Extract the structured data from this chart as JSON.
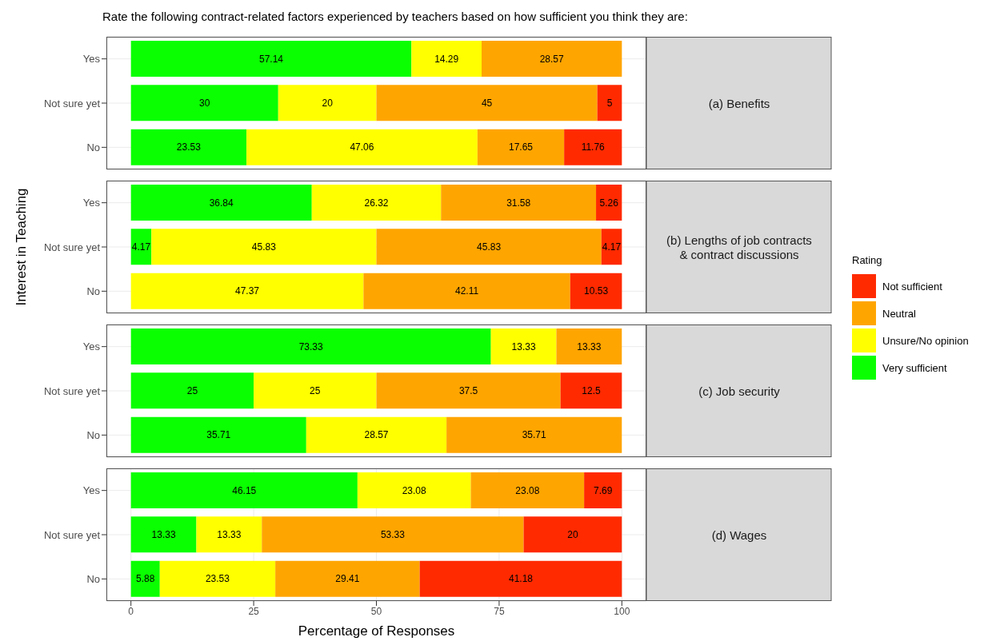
{
  "chart_data": [
    {
      "type": "bar",
      "orientation": "horizontal",
      "stacked": true,
      "title": "Rate the following contract-related factors experienced by teachers based on how sufficient you think they are:",
      "annotations": [
        "(a) Benefits"
      ],
      "legend": "right",
      "legend_title": "Rating",
      "categories": [
        "Yes",
        "Not sure yet",
        "No"
      ],
      "xlim": [
        -5,
        105
      ],
      "xticks": [
        0,
        25,
        50,
        75,
        100
      ],
      "grid": true,
      "data_labels": true,
      "tick_labels": "y",
      "series": [
        {
          "name": "Very sufficient",
          "color": "#0aff00",
          "values": [
            57.14,
            30,
            23.53
          ]
        },
        {
          "name": "Unsure/No opinion",
          "color": "#ffff00",
          "values": [
            14.29,
            20,
            47.06
          ]
        },
        {
          "name": "Neutral",
          "color": "#ffa500",
          "values": [
            28.57,
            45,
            17.65
          ]
        },
        {
          "name": "Not sufficient",
          "color": "#ff2a00",
          "values": [
            null,
            5,
            11.76
          ]
        }
      ]
    },
    {
      "type": "bar",
      "orientation": "horizontal",
      "stacked": true,
      "annotations": [
        "(b) Lengths of job contracts & contract discussions"
      ],
      "ylabel": "Interest in Teaching",
      "categories": [
        "Yes",
        "Not sure yet",
        "No"
      ],
      "xlim": [
        -5,
        105
      ],
      "xticks": [
        0,
        25,
        50,
        75,
        100
      ],
      "grid": true,
      "data_labels": true,
      "tick_labels": "y",
      "series": [
        {
          "color": "#0aff00",
          "values": [
            36.84,
            4.17,
            null
          ]
        },
        {
          "color": "#ffff00",
          "values": [
            26.32,
            45.83,
            47.37
          ]
        },
        {
          "color": "#ffa500",
          "values": [
            31.58,
            45.83,
            42.11
          ]
        },
        {
          "color": "#ff2a00",
          "values": [
            5.26,
            4.17,
            10.53
          ]
        }
      ]
    },
    {
      "type": "bar",
      "orientation": "horizontal",
      "stacked": true,
      "annotations": [
        "(c) Job security"
      ],
      "categories": [
        "Yes",
        "Not sure yet",
        "No"
      ],
      "xlim": [
        -5,
        105
      ],
      "xticks": [
        0,
        25,
        50,
        75,
        100
      ],
      "grid": true,
      "data_labels": true,
      "tick_labels": "y",
      "series": [
        {
          "color": "#0aff00",
          "values": [
            73.33,
            25,
            35.71
          ]
        },
        {
          "color": "#ffff00",
          "values": [
            13.33,
            25,
            28.57
          ]
        },
        {
          "color": "#ffa500",
          "values": [
            13.33,
            37.5,
            35.71
          ]
        },
        {
          "color": "#ff2a00",
          "values": [
            null,
            12.5,
            null
          ]
        }
      ]
    },
    {
      "type": "bar",
      "orientation": "horizontal",
      "stacked": true,
      "annotations": [
        "(d) Wages"
      ],
      "xlabel": "Percentage of Responses",
      "categories": [
        "Yes",
        "Not sure yet",
        "No"
      ],
      "xlim": [
        -5,
        105
      ],
      "xticks": [
        0,
        25,
        50,
        75,
        100
      ],
      "grid": true,
      "data_labels": true,
      "series": [
        {
          "color": "#0aff00",
          "values": [
            46.15,
            13.33,
            5.88
          ]
        },
        {
          "color": "#ffff00",
          "values": [
            23.08,
            13.33,
            23.53
          ]
        },
        {
          "color": "#ffa500",
          "values": [
            23.08,
            53.33,
            29.41
          ]
        },
        {
          "color": "#ff2a00",
          "values": [
            7.69,
            20,
            41.18
          ]
        }
      ]
    }
  ]
}
